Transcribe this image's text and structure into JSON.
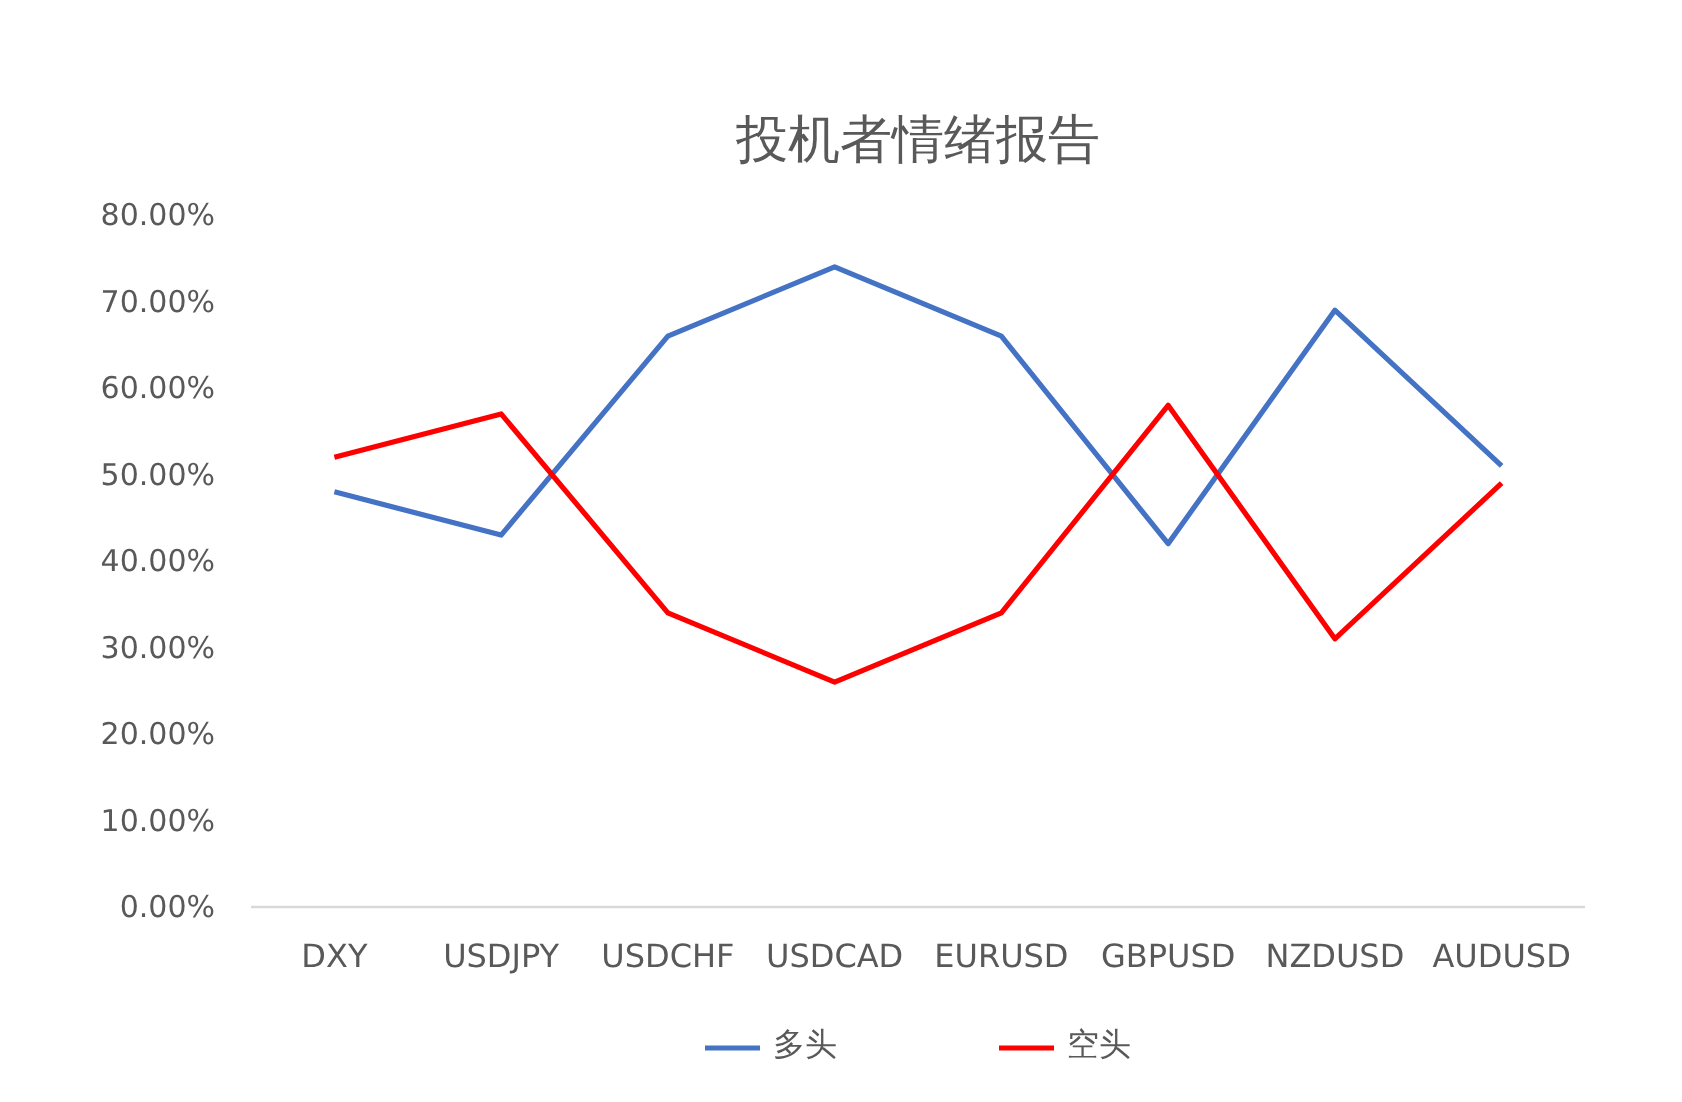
{
  "chart_data": {
    "type": "line",
    "title": "投机者情绪报告",
    "categories": [
      "DXY",
      "USDJPY",
      "USDCHF",
      "USDCAD",
      "EURUSD",
      "GBPUSD",
      "NZDUSD",
      "AUDUSD"
    ],
    "series": [
      {
        "name": "多头",
        "color": "#4472c4",
        "values": [
          48,
          43,
          66,
          74,
          66,
          42,
          69,
          51
        ]
      },
      {
        "name": "空头",
        "color": "#ff0000",
        "values": [
          52,
          57,
          34,
          26,
          34,
          58,
          31,
          49
        ]
      }
    ],
    "ylim": [
      0,
      80
    ],
    "yticks": [
      {
        "value": 0,
        "label": "0.00%"
      },
      {
        "value": 10,
        "label": "10.00%"
      },
      {
        "value": 20,
        "label": "20.00%"
      },
      {
        "value": 30,
        "label": "30.00%"
      },
      {
        "value": 40,
        "label": "40.00%"
      },
      {
        "value": 50,
        "label": "50.00%"
      },
      {
        "value": 60,
        "label": "60.00%"
      },
      {
        "value": 70,
        "label": "70.00%"
      },
      {
        "value": 80,
        "label": "80.00%"
      }
    ],
    "grid": false,
    "legend": "bottom",
    "line_style": "solid"
  }
}
